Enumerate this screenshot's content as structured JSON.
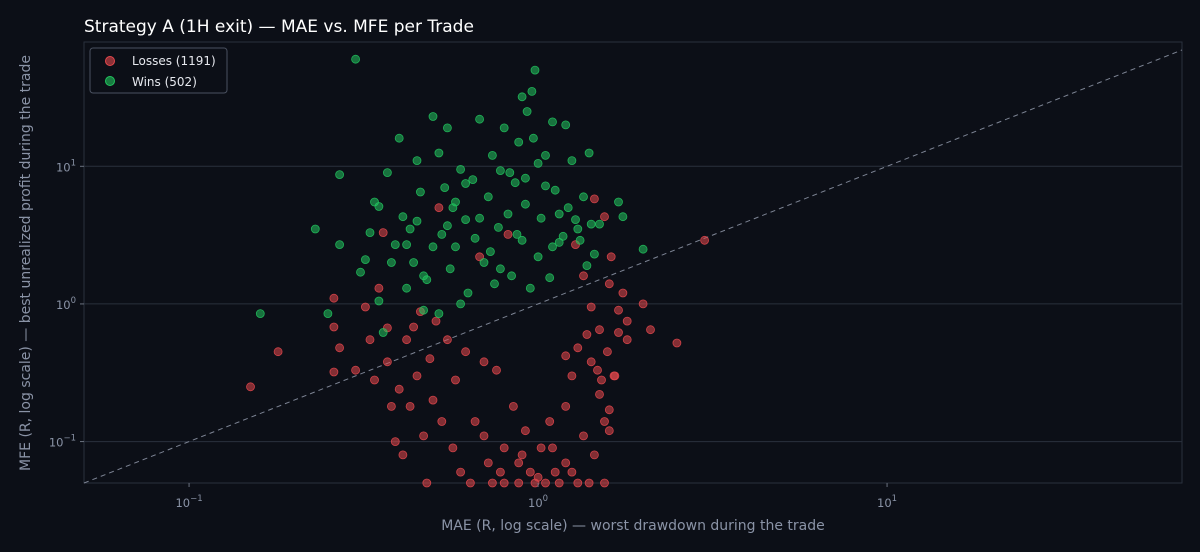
{
  "chart_data": {
    "type": "scatter",
    "title": "Strategy A (1H exit) — MAE vs. MFE per Trade",
    "xlabel": "MAE (R, log scale) — worst drawdown during the trade",
    "ylabel": "MFE (R, log scale) — best unrealized profit during the trade",
    "x_scale": "log",
    "y_scale": "log",
    "xlim": [
      0.05,
      70
    ],
    "ylim": [
      0.05,
      80
    ],
    "x_ticks": [
      {
        "base": "10",
        "exp": "−1",
        "value": 0.1
      },
      {
        "base": "10",
        "exp": "0",
        "value": 1
      },
      {
        "base": "10",
        "exp": "1",
        "value": 10
      }
    ],
    "y_ticks": [
      {
        "base": "10",
        "exp": "−1",
        "value": 0.1
      },
      {
        "base": "10",
        "exp": "0",
        "value": 1
      },
      {
        "base": "10",
        "exp": "1",
        "value": 10
      }
    ],
    "grid": "horizontal",
    "legend_position": "top-left",
    "reference_line": "y = x (dashed)",
    "series": [
      {
        "name": "Losses (1191)",
        "count": 1191,
        "color": "#e5484d",
        "points": [
          [
            0.15,
            0.25
          ],
          [
            0.18,
            0.45
          ],
          [
            0.26,
            1.1
          ],
          [
            0.26,
            0.68
          ],
          [
            0.27,
            0.48
          ],
          [
            0.26,
            0.32
          ],
          [
            0.3,
            0.33
          ],
          [
            0.32,
            0.95
          ],
          [
            0.33,
            0.55
          ],
          [
            0.34,
            0.28
          ],
          [
            0.35,
            1.3
          ],
          [
            0.36,
            3.3
          ],
          [
            0.37,
            0.67
          ],
          [
            0.37,
            0.38
          ],
          [
            0.38,
            0.18
          ],
          [
            0.39,
            0.1
          ],
          [
            0.4,
            0.24
          ],
          [
            0.41,
            0.08
          ],
          [
            0.42,
            0.55
          ],
          [
            0.43,
            0.18
          ],
          [
            0.44,
            0.68
          ],
          [
            0.45,
            0.3
          ],
          [
            0.46,
            0.88
          ],
          [
            0.47,
            0.11
          ],
          [
            0.48,
            0.05
          ],
          [
            0.49,
            0.4
          ],
          [
            0.5,
            0.2
          ],
          [
            0.51,
            0.75
          ],
          [
            0.52,
            5.0
          ],
          [
            0.53,
            0.14
          ],
          [
            0.55,
            0.55
          ],
          [
            0.57,
            0.09
          ],
          [
            0.58,
            0.28
          ],
          [
            0.6,
            0.06
          ],
          [
            0.62,
            0.45
          ],
          [
            0.64,
            0.05
          ],
          [
            0.66,
            0.14
          ],
          [
            0.68,
            2.2
          ],
          [
            0.7,
            0.38
          ],
          [
            0.72,
            0.07
          ],
          [
            0.74,
            0.05
          ],
          [
            0.76,
            0.33
          ],
          [
            0.78,
            0.06
          ],
          [
            0.8,
            0.05
          ],
          [
            0.82,
            3.2
          ],
          [
            0.85,
            0.18
          ],
          [
            0.88,
            0.05
          ],
          [
            0.9,
            0.08
          ],
          [
            0.92,
            0.12
          ],
          [
            0.95,
            0.06
          ],
          [
            0.98,
            0.05
          ],
          [
            1.02,
            0.09
          ],
          [
            1.05,
            0.05
          ],
          [
            1.08,
            0.14
          ],
          [
            1.12,
            0.06
          ],
          [
            1.15,
            0.05
          ],
          [
            1.2,
            0.18
          ],
          [
            1.25,
            0.06
          ],
          [
            1.3,
            0.05
          ],
          [
            1.35,
            0.11
          ],
          [
            1.45,
            0.08
          ],
          [
            1.55,
            0.05
          ],
          [
            1.6,
            0.12
          ],
          [
            1.2,
            0.07
          ],
          [
            1.1,
            0.09
          ],
          [
            1.4,
            0.05
          ],
          [
            1.0,
            0.055
          ],
          [
            0.88,
            0.07
          ],
          [
            0.8,
            0.09
          ],
          [
            0.7,
            0.11
          ],
          [
            1.48,
            0.33
          ],
          [
            1.52,
            0.28
          ],
          [
            1.58,
            0.45
          ],
          [
            1.65,
            0.3
          ],
          [
            1.7,
            0.9
          ],
          [
            1.75,
            1.2
          ],
          [
            1.8,
            0.55
          ],
          [
            1.62,
            2.2
          ],
          [
            1.55,
            4.3
          ],
          [
            1.45,
            5.8
          ],
          [
            1.7,
            0.62
          ],
          [
            1.8,
            0.75
          ],
          [
            2.0,
            1.0
          ],
          [
            2.1,
            0.65
          ],
          [
            2.5,
            0.52
          ],
          [
            3.0,
            2.9
          ],
          [
            1.6,
            1.4
          ],
          [
            1.5,
            0.65
          ],
          [
            1.42,
            0.95
          ],
          [
            1.35,
            1.6
          ],
          [
            1.28,
            2.7
          ],
          [
            1.6,
            0.17
          ],
          [
            1.5,
            0.22
          ],
          [
            1.55,
            0.14
          ],
          [
            1.66,
            0.3
          ],
          [
            1.42,
            0.38
          ],
          [
            1.38,
            0.6
          ],
          [
            1.3,
            0.48
          ],
          [
            1.25,
            0.3
          ],
          [
            1.2,
            0.42
          ]
        ]
      },
      {
        "name": "Wins (502)",
        "count": 502,
        "color": "#22c55e",
        "points": [
          [
            0.16,
            0.85
          ],
          [
            0.23,
            3.5
          ],
          [
            0.25,
            0.85
          ],
          [
            0.27,
            2.7
          ],
          [
            0.27,
            8.7
          ],
          [
            0.3,
            60.0
          ],
          [
            0.31,
            1.7
          ],
          [
            0.32,
            2.1
          ],
          [
            0.33,
            3.3
          ],
          [
            0.34,
            5.5
          ],
          [
            0.35,
            5.1
          ],
          [
            0.35,
            1.05
          ],
          [
            0.36,
            0.62
          ],
          [
            0.37,
            9.0
          ],
          [
            0.38,
            2.0
          ],
          [
            0.39,
            2.7
          ],
          [
            0.4,
            16.0
          ],
          [
            0.41,
            4.3
          ],
          [
            0.42,
            1.3
          ],
          [
            0.43,
            3.5
          ],
          [
            0.44,
            2.0
          ],
          [
            0.45,
            11.0
          ],
          [
            0.46,
            6.5
          ],
          [
            0.47,
            0.9
          ],
          [
            0.48,
            1.5
          ],
          [
            0.5,
            2.6
          ],
          [
            0.5,
            23.0
          ],
          [
            0.52,
            12.5
          ],
          [
            0.53,
            3.2
          ],
          [
            0.54,
            7.0
          ],
          [
            0.55,
            19.0
          ],
          [
            0.56,
            1.8
          ],
          [
            0.57,
            5.0
          ],
          [
            0.58,
            2.6
          ],
          [
            0.6,
            9.5
          ],
          [
            0.62,
            4.1
          ],
          [
            0.63,
            1.2
          ],
          [
            0.65,
            8.0
          ],
          [
            0.66,
            3.0
          ],
          [
            0.68,
            22.0
          ],
          [
            0.7,
            2.0
          ],
          [
            0.72,
            6.0
          ],
          [
            0.74,
            12.0
          ],
          [
            0.75,
            1.4
          ],
          [
            0.77,
            3.6
          ],
          [
            0.78,
            9.3
          ],
          [
            0.8,
            19.0
          ],
          [
            0.82,
            4.5
          ],
          [
            0.84,
            1.6
          ],
          [
            0.86,
            7.6
          ],
          [
            0.88,
            15.0
          ],
          [
            0.9,
            2.9
          ],
          [
            0.9,
            32.0
          ],
          [
            0.92,
            5.3
          ],
          [
            0.93,
            25.0
          ],
          [
            0.95,
            1.3
          ],
          [
            0.96,
            35.0
          ],
          [
            0.97,
            16.0
          ],
          [
            0.98,
            50.0
          ],
          [
            1.0,
            2.2
          ],
          [
            1.02,
            4.2
          ],
          [
            1.05,
            12.0
          ],
          [
            1.08,
            1.55
          ],
          [
            1.1,
            21.0
          ],
          [
            1.12,
            6.7
          ],
          [
            1.15,
            2.8
          ],
          [
            1.2,
            20.0
          ],
          [
            1.22,
            5.0
          ],
          [
            1.25,
            11.0
          ],
          [
            1.3,
            3.5
          ],
          [
            1.35,
            6.0
          ],
          [
            1.4,
            12.5
          ],
          [
            1.45,
            2.3
          ],
          [
            1.5,
            3.8
          ],
          [
            1.7,
            5.5
          ],
          [
            1.75,
            4.3
          ],
          [
            2.0,
            2.5
          ],
          [
            0.42,
            2.7
          ],
          [
            0.45,
            4.0
          ],
          [
            0.47,
            1.6
          ],
          [
            0.52,
            0.85
          ],
          [
            0.6,
            1.0
          ],
          [
            0.55,
            3.7
          ],
          [
            0.58,
            5.5
          ],
          [
            0.62,
            7.5
          ],
          [
            0.68,
            4.2
          ],
          [
            0.73,
            2.4
          ],
          [
            0.78,
            1.8
          ],
          [
            0.83,
            9.0
          ],
          [
            0.87,
            3.2
          ],
          [
            0.92,
            8.2
          ],
          [
            1.0,
            10.5
          ],
          [
            1.05,
            7.2
          ],
          [
            1.1,
            2.6
          ],
          [
            1.15,
            4.5
          ],
          [
            1.18,
            3.1
          ],
          [
            1.28,
            4.1
          ],
          [
            1.32,
            2.9
          ],
          [
            1.38,
            1.9
          ],
          [
            1.42,
            3.8
          ]
        ]
      }
    ]
  }
}
